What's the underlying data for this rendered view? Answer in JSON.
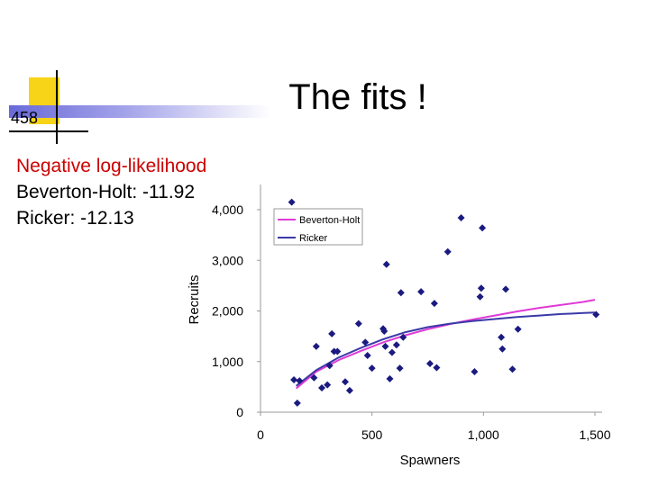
{
  "slide": {
    "number": "458",
    "title": "The fits !",
    "notes": {
      "heading": "Negative log-likelihood",
      "line1": "Beverton-Holt: -11.92",
      "line2": "Ricker: -12.13"
    }
  },
  "chart_data": {
    "type": "scatter",
    "xlabel": "Spawners",
    "ylabel": "Recruits",
    "xlim": [
      0,
      1500
    ],
    "ylim": [
      0,
      4000
    ],
    "xticks": [
      0,
      500,
      1000,
      1500
    ],
    "xtick_labels": [
      "0",
      "500",
      "1,000",
      "1,500"
    ],
    "yticks": [
      0,
      1000,
      2000,
      3000,
      4000
    ],
    "ytick_labels": [
      "0",
      "1,000",
      "2,000",
      "3,000",
      "4,000"
    ],
    "grid": false,
    "legend": "top-left",
    "points": [
      {
        "x": 140,
        "y": 4150
      },
      {
        "x": 150,
        "y": 640
      },
      {
        "x": 165,
        "y": 180
      },
      {
        "x": 175,
        "y": 620
      },
      {
        "x": 240,
        "y": 680
      },
      {
        "x": 250,
        "y": 1300
      },
      {
        "x": 275,
        "y": 480
      },
      {
        "x": 300,
        "y": 540
      },
      {
        "x": 310,
        "y": 920
      },
      {
        "x": 320,
        "y": 1550
      },
      {
        "x": 330,
        "y": 1200
      },
      {
        "x": 345,
        "y": 1200
      },
      {
        "x": 380,
        "y": 600
      },
      {
        "x": 400,
        "y": 430
      },
      {
        "x": 440,
        "y": 1750
      },
      {
        "x": 470,
        "y": 1380
      },
      {
        "x": 480,
        "y": 1120
      },
      {
        "x": 500,
        "y": 870
      },
      {
        "x": 550,
        "y": 1650
      },
      {
        "x": 555,
        "y": 1600
      },
      {
        "x": 560,
        "y": 1300
      },
      {
        "x": 565,
        "y": 2920
      },
      {
        "x": 580,
        "y": 660
      },
      {
        "x": 590,
        "y": 1180
      },
      {
        "x": 610,
        "y": 1330
      },
      {
        "x": 625,
        "y": 870
      },
      {
        "x": 630,
        "y": 2360
      },
      {
        "x": 640,
        "y": 1480
      },
      {
        "x": 720,
        "y": 2380
      },
      {
        "x": 760,
        "y": 960
      },
      {
        "x": 780,
        "y": 2150
      },
      {
        "x": 790,
        "y": 880
      },
      {
        "x": 840,
        "y": 3170
      },
      {
        "x": 900,
        "y": 3840
      },
      {
        "x": 960,
        "y": 800
      },
      {
        "x": 985,
        "y": 2280
      },
      {
        "x": 990,
        "y": 2450
      },
      {
        "x": 995,
        "y": 3640
      },
      {
        "x": 1080,
        "y": 1480
      },
      {
        "x": 1085,
        "y": 1250
      },
      {
        "x": 1100,
        "y": 2430
      },
      {
        "x": 1130,
        "y": 850
      },
      {
        "x": 1155,
        "y": 1640
      },
      {
        "x": 1505,
        "y": 1930
      }
    ],
    "series": [
      {
        "name": "Beverton-Holt",
        "color": "#e03ad6",
        "x": [
          160,
          250,
          350,
          450,
          550,
          650,
          750,
          850,
          950,
          1050,
          1150,
          1250,
          1350,
          1450,
          1500
        ],
        "values": [
          470,
          800,
          1030,
          1210,
          1380,
          1520,
          1640,
          1740,
          1830,
          1910,
          1990,
          2060,
          2120,
          2180,
          2220
        ]
      },
      {
        "name": "Ricker",
        "color": "#3a3aa8",
        "x": [
          160,
          250,
          350,
          450,
          550,
          650,
          750,
          850,
          950,
          1050,
          1150,
          1250,
          1350,
          1450,
          1500
        ],
        "values": [
          520,
          830,
          1080,
          1270,
          1440,
          1580,
          1680,
          1750,
          1800,
          1840,
          1880,
          1910,
          1940,
          1960,
          1970
        ]
      }
    ]
  }
}
